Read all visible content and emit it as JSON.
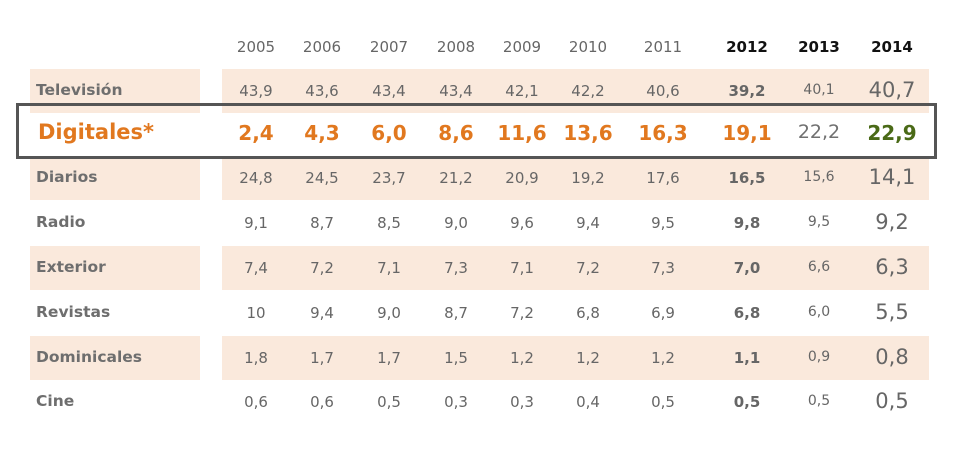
{
  "chart_data": {
    "type": "table",
    "columns": [
      "2005",
      "2006",
      "2007",
      "2008",
      "2009",
      "2010",
      "2011",
      "2012",
      "2013",
      "2014"
    ],
    "rows": [
      {
        "label": "Televisión",
        "values": [
          "43,9",
          "43,6",
          "43,4",
          "43,4",
          "42,1",
          "42,2",
          "40,6",
          "39,2",
          "40,1",
          "40,7"
        ]
      },
      {
        "label": "Digitales*",
        "values": [
          "2,4",
          "4,3",
          "6,0",
          "8,6",
          "11,6",
          "13,6",
          "16,3",
          "19,1",
          "22,2",
          "22,9"
        ]
      },
      {
        "label": "Diarios",
        "values": [
          "24,8",
          "24,5",
          "23,7",
          "21,2",
          "20,9",
          "19,2",
          "17,6",
          "16,5",
          "15,6",
          "14,1"
        ]
      },
      {
        "label": "Radio",
        "values": [
          "9,1",
          "8,7",
          "8,5",
          "9,0",
          "9,6",
          "9,4",
          "9,5",
          "9,8",
          "9,5",
          "9,2"
        ]
      },
      {
        "label": "Exterior",
        "values": [
          "7,4",
          "7,2",
          "7,1",
          "7,3",
          "7,1",
          "7,2",
          "7,3",
          "7,0",
          "6,6",
          "6,3"
        ]
      },
      {
        "label": "Revistas",
        "values": [
          "10",
          "9,4",
          "9,0",
          "8,7",
          "7,2",
          "6,8",
          "6,9",
          "6,8",
          "6,0",
          "5,5"
        ]
      },
      {
        "label": "Dominicales",
        "values": [
          "1,8",
          "1,7",
          "1,7",
          "1,5",
          "1,2",
          "1,2",
          "1,2",
          "1,1",
          "0,9",
          "0,8"
        ]
      },
      {
        "label": "Cine",
        "values": [
          "0,6",
          "0,6",
          "0,5",
          "0,3",
          "0,3",
          "0,4",
          "0,5",
          "0,5",
          "0,5",
          "0,5"
        ]
      }
    ],
    "highlighted_row": "Digitales*",
    "colors": {
      "band": "#fae9dc",
      "highlight_text": "#e1781f",
      "highlight_green": "#4a6a17",
      "box_border": "#555555"
    }
  }
}
